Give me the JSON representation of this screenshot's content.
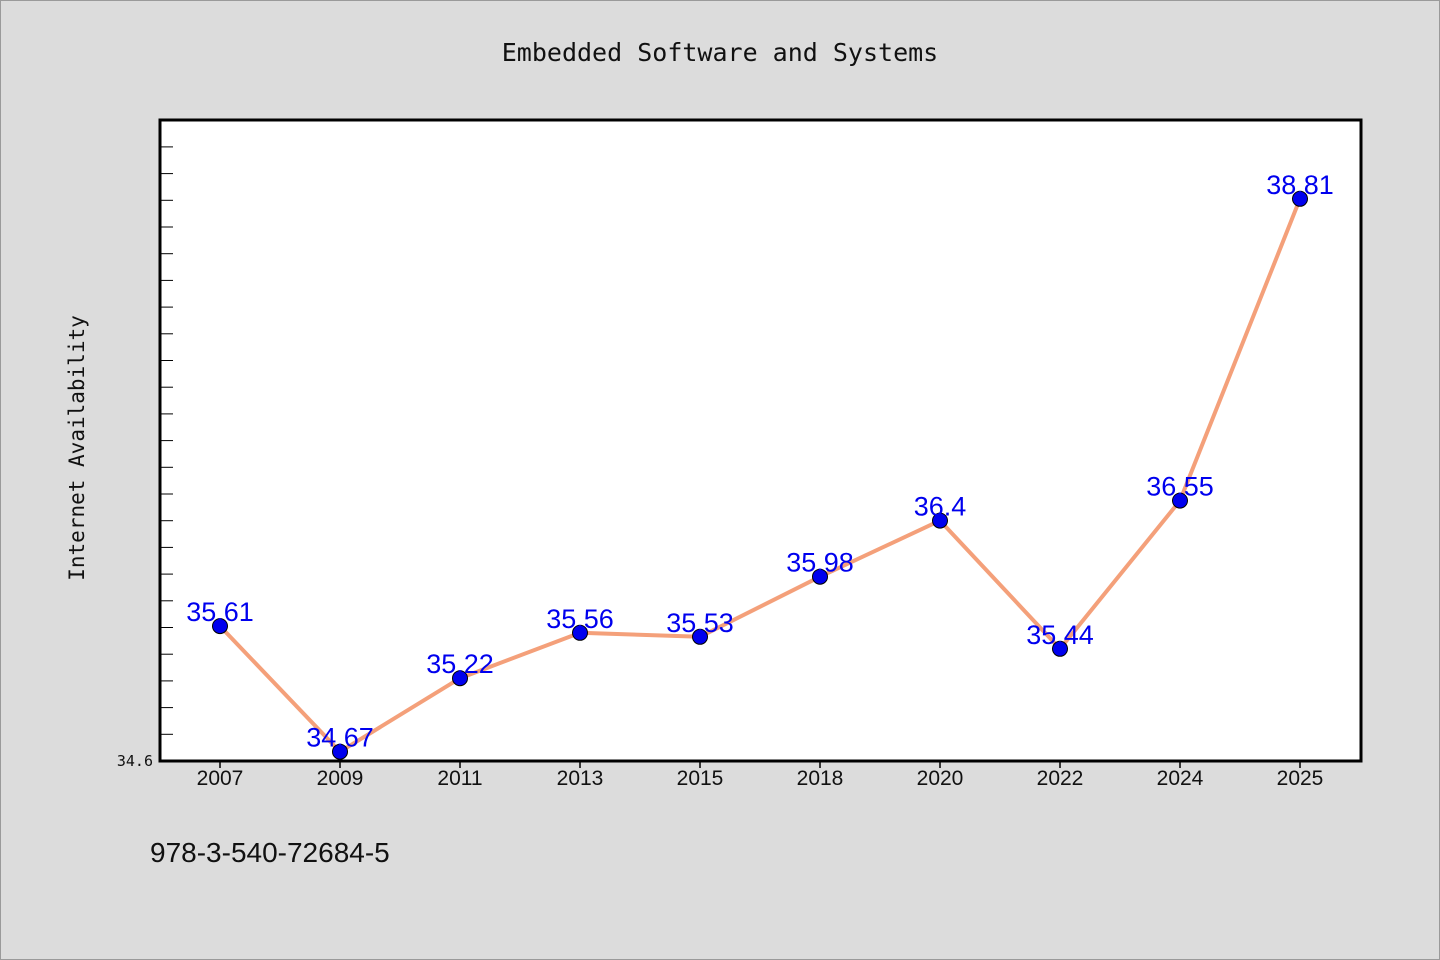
{
  "chart_data": {
    "type": "line",
    "title": "Embedded Software and Systems",
    "xlabel": "",
    "ylabel": "Internet Availability",
    "categories": [
      "2007",
      "2009",
      "2011",
      "2013",
      "2015",
      "2018",
      "2020",
      "2022",
      "2024",
      "2025"
    ],
    "series": [
      {
        "values": [
          35.61,
          34.67,
          35.22,
          35.56,
          35.53,
          35.98,
          36.4,
          35.44,
          36.55,
          38.81
        ],
        "labels": [
          "35.61",
          "34.67",
          "35.22",
          "35.56",
          "35.53",
          "35.98",
          "36.4",
          "35.44",
          "36.55",
          "38.81"
        ],
        "line_color": "#f4a07a",
        "marker_color": "#0000ee",
        "label_color": "#0000ee"
      }
    ],
    "ylim": [
      34.6,
      39.4
    ],
    "y_tick_label": "34.6",
    "grid": false,
    "legend": "none",
    "background": "#dcdcdc",
    "plot_background": "#ffffff"
  },
  "footer": {
    "isbn": "978-3-540-72684-5"
  }
}
